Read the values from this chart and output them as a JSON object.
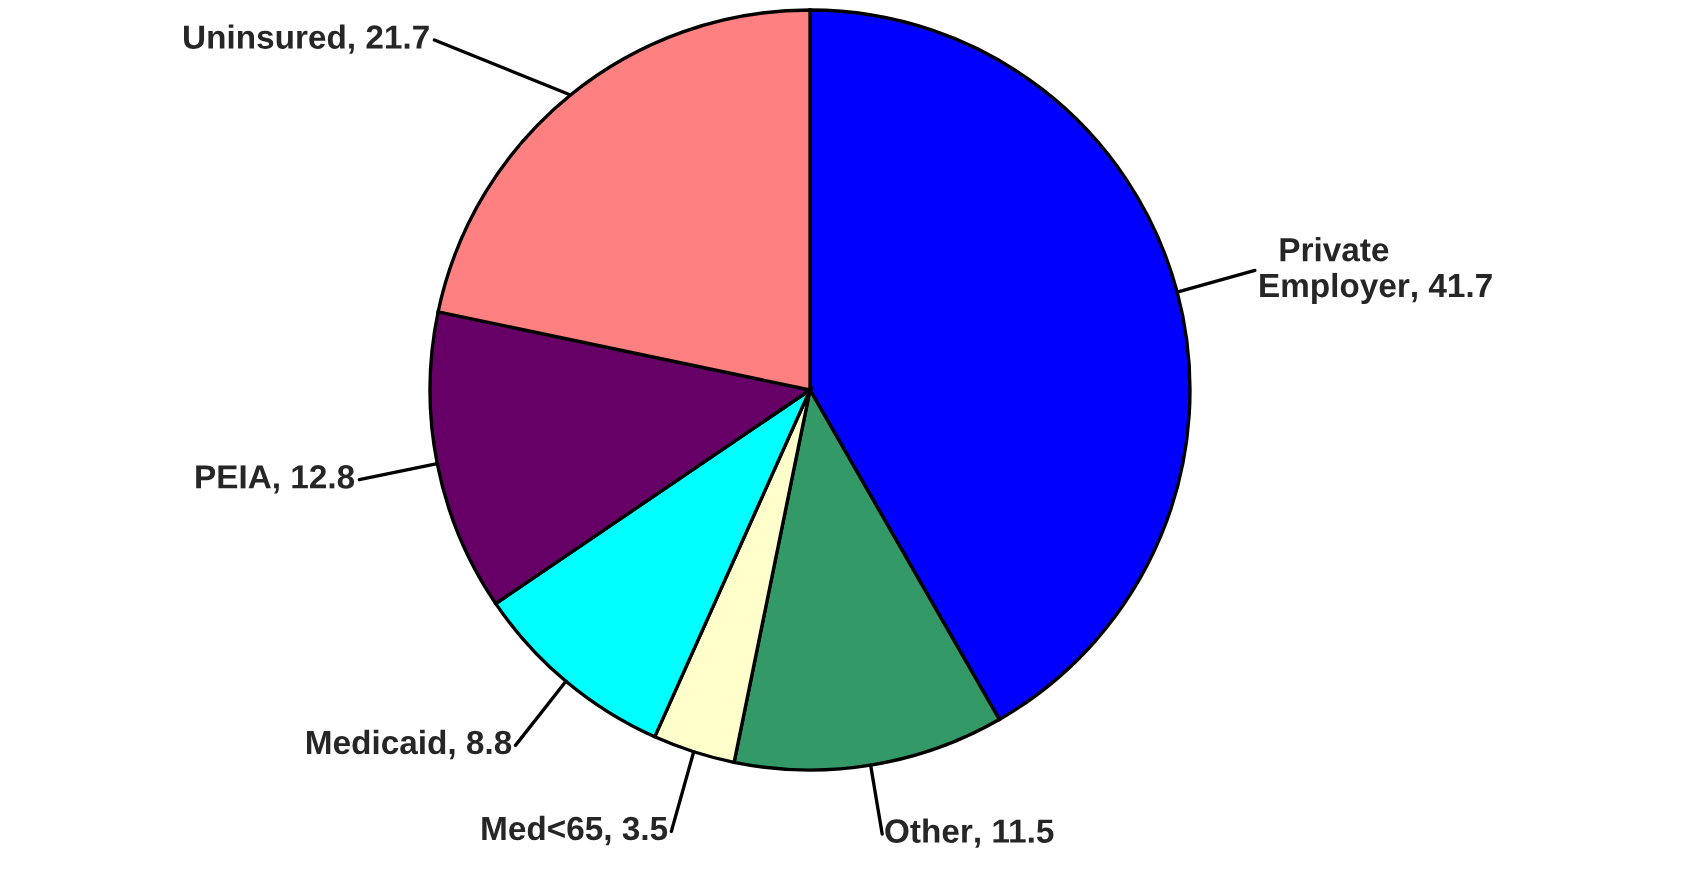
{
  "chart_data": {
    "type": "pie",
    "categories": [
      "Private Employer",
      "Other",
      "Med<65",
      "Medicaid",
      "PEIA",
      "Uninsured"
    ],
    "values": [
      41.7,
      11.5,
      3.5,
      8.8,
      12.8,
      21.7
    ],
    "value_labels": [
      ", 41.7",
      ", 11.5",
      ", 3.5",
      ", 8.8",
      ", 12.8",
      ", 21.7"
    ],
    "colors": [
      "#0000ff",
      "#339966",
      "#ffffcc",
      "#00ffff",
      "#660066",
      "#ff8080"
    ]
  }
}
